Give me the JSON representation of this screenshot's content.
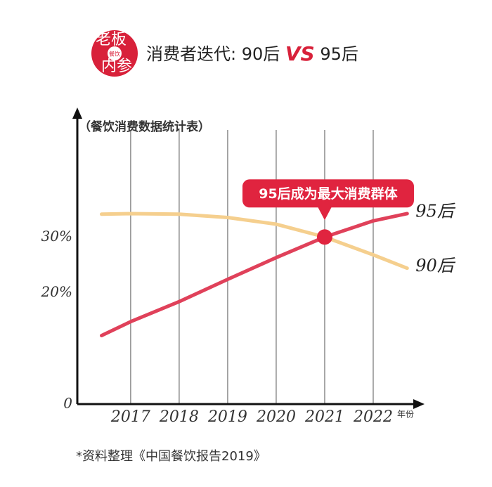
{
  "logo": [
    "老板",
    "餐饮",
    "内参"
  ],
  "header": {
    "title_parts": [
      "消费者迭代: 90后 ",
      "VS",
      " 95后"
    ]
  },
  "chart_data": {
    "type": "line",
    "subtitle": "（餐饮消费数据统计表）",
    "x_label": "年份",
    "x": [
      2016.4,
      2017,
      2018,
      2019,
      2020,
      2021,
      2022,
      2022.7
    ],
    "xlim": [
      2015.9,
      2023.0
    ],
    "xticks": [
      2017,
      2018,
      2019,
      2020,
      2021,
      2022
    ],
    "ylim": [
      0,
      53
    ],
    "yticks": [
      0,
      {
        "value": 20,
        "label": "20%"
      },
      {
        "value": 30,
        "label": "30%"
      }
    ],
    "grid": true,
    "series": [
      {
        "name": "95后",
        "color": "#e0415a",
        "values": [
          12.3,
          14.8,
          18.4,
          22.4,
          26.3,
          30,
          32.9,
          34.2
        ]
      },
      {
        "name": "90后",
        "color": "#f5cf8e",
        "values": [
          34.1,
          34.2,
          34.1,
          33.5,
          32.3,
          30,
          26.8,
          24.4
        ]
      }
    ],
    "annotation": {
      "text": "95后成为最大消费群体",
      "x": 2021,
      "y": 30,
      "color": "#e0243f"
    }
  },
  "footnote": "*资料整理《中国餐饮报告2019》"
}
